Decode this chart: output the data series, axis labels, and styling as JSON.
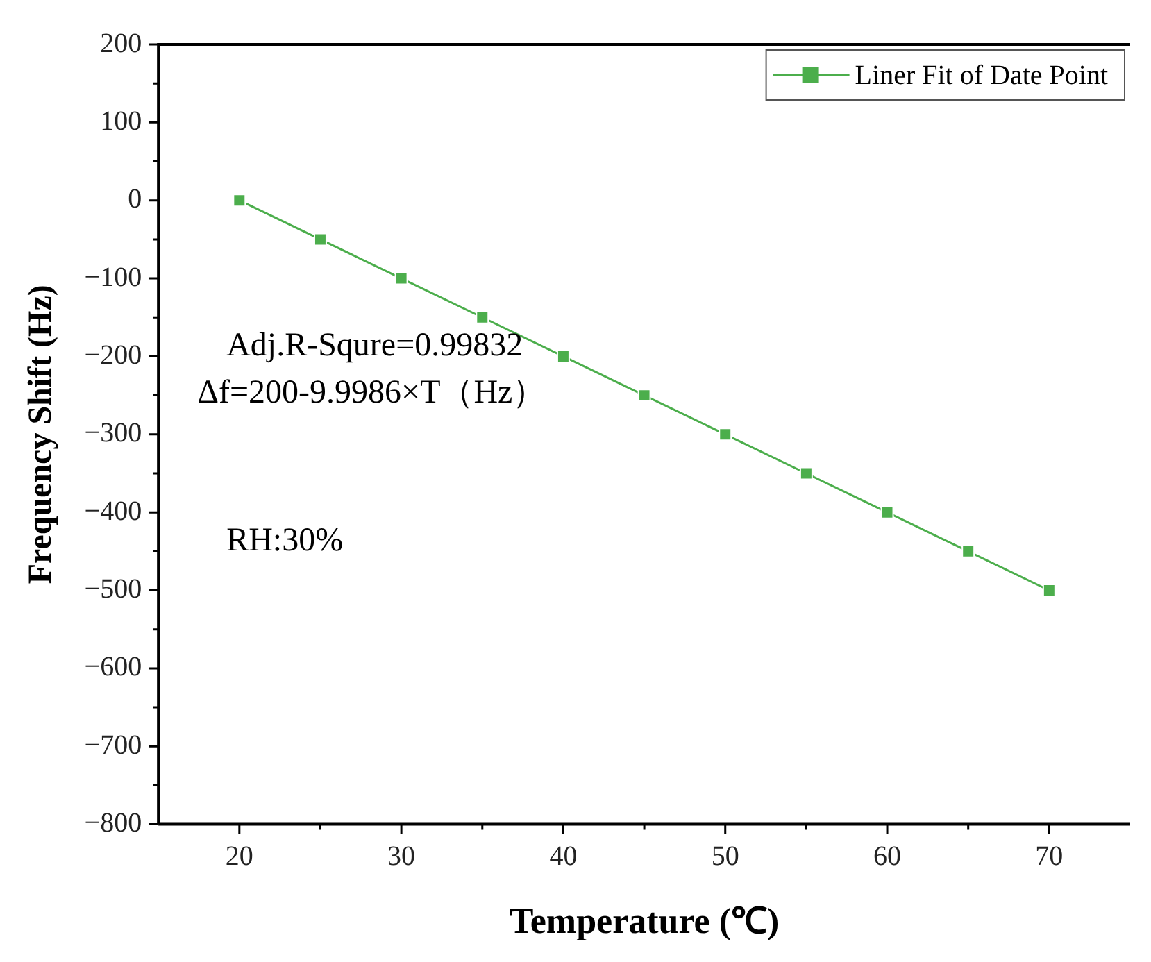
{
  "chart_data": {
    "type": "line",
    "xlabel": "Temperature (℃)",
    "ylabel": "Frequency Shift (Hz)",
    "x": [
      20,
      25,
      30,
      35,
      40,
      45,
      50,
      55,
      60,
      65,
      70
    ],
    "series": [
      {
        "name": "Liner Fit of Date Point",
        "color": "#4cae4c",
        "values": [
          0,
          -50,
          -100,
          -150,
          -200,
          -250,
          -300,
          -350,
          -400,
          -450,
          -500
        ]
      }
    ],
    "xlim": [
      15,
      75
    ],
    "xticks": [
      20,
      30,
      40,
      50,
      60,
      70
    ],
    "ylim": [
      -800,
      200
    ],
    "yticks": [
      -800,
      -700,
      -600,
      -500,
      -400,
      -300,
      -200,
      -100,
      0,
      100,
      200
    ],
    "annotations": [
      "Adj.R-Squre=0.99832",
      "Δf=200-9.9986×T（Hz）",
      "RH:30%"
    ],
    "legend": "top right",
    "marker": "square",
    "line_style": "solid",
    "grid": false
  }
}
